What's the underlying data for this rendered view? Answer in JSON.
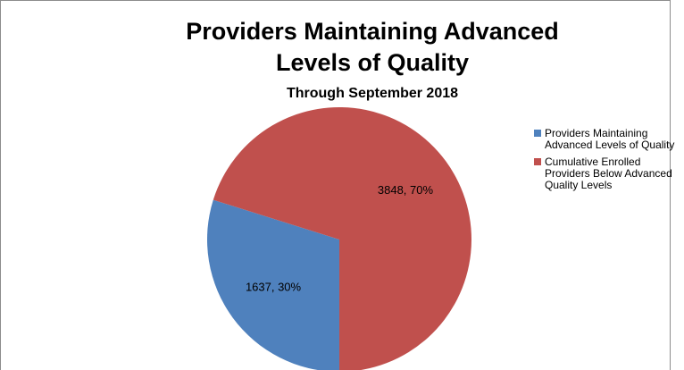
{
  "chart_data": {
    "type": "pie",
    "title": "Providers Maintaining Advanced Levels of Quality",
    "subtitle": "Through September 2018",
    "categories": [
      "Providers Maintaining Advanced Levels of Quality",
      "Cumulative Enrolled Providers Below Advanced Quality Levels"
    ],
    "values": [
      1637,
      3848
    ],
    "value_labels": [
      "1637, 30%",
      "3848, 70%"
    ],
    "colors": [
      "#4f81bd",
      "#c0504d"
    ],
    "legend": "right"
  }
}
